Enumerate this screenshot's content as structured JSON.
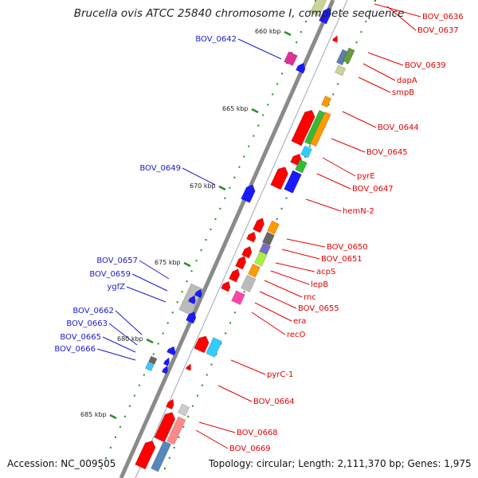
{
  "title": "Brucella ovis ATCC 25840 chromosome I, complete sequence",
  "footer": {
    "accession": "Accession: NC_009505",
    "topology": "Topology: circular; Length: 2,111,370 bp; Genes: 1,975"
  },
  "colors": {
    "forward_label": "#1a1acc",
    "reverse_label": "#e60000",
    "backbone": "#8c8c8c"
  },
  "kbp_ticks": [
    "660 kbp",
    "665 kbp",
    "670 kbp",
    "675 kbp",
    "680 kbp",
    "685 kbp"
  ],
  "forward_genes": [
    "BOV_0642",
    "BOV_0649",
    "BOV_0657",
    "BOV_0659",
    "ygfZ",
    "BOV_0662",
    "BOV_0663",
    "BOV_0665",
    "BOV_0666"
  ],
  "reverse_genes": [
    "BOV_0636",
    "BOV_0637",
    "BOV_0639",
    "dapA",
    "smpB",
    "BOV_0644",
    "BOV_0645",
    "pyrE",
    "BOV_0647",
    "hemN-2",
    "BOV_0650",
    "BOV_0651",
    "acpS",
    "lepB",
    "rnc",
    "BOV_0655",
    "era",
    "recO",
    "pyrC-1",
    "BOV_0664",
    "BOV_0668",
    "BOV_0669"
  ]
}
